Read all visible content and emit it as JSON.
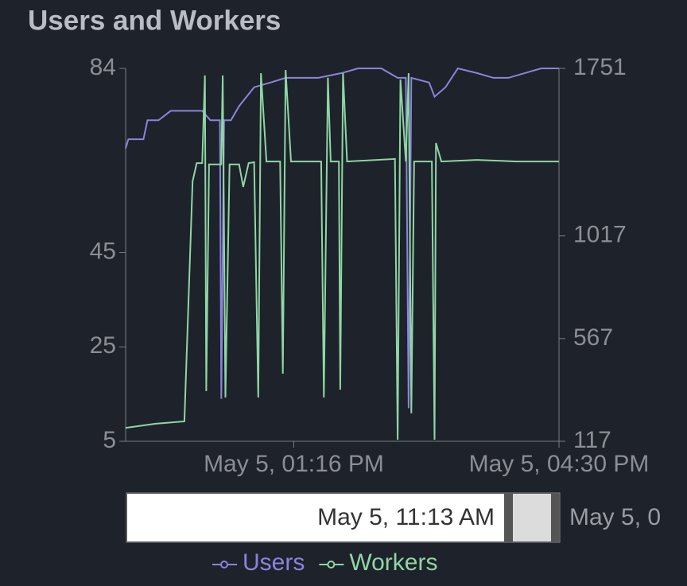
{
  "chart_data": {
    "type": "line",
    "title": "Users and Workers",
    "xlim": [
      "May 5, 11:13 AM",
      "May 5, 04:30 PM"
    ],
    "xticks": [
      "May 5, 01:16 PM",
      "May 5, 04:30 PM"
    ],
    "ylim": [
      5,
      84
    ],
    "yticks": [
      5,
      25,
      45,
      84
    ],
    "y2lim": [
      117,
      1751
    ],
    "y2ticks": [
      117,
      567,
      1017,
      1751
    ],
    "series": [
      {
        "name": "Users",
        "color": "#8b84dc",
        "axis": "y",
        "x": [
          "May 5, 11:13 AM",
          "May 5, 11:15 AM",
          "May 5, 11:26 AM",
          "May 5, 11:29 AM",
          "May 5, 11:37 AM",
          "May 5, 11:46 AM",
          "May 5, 11:55 AM",
          "May 5, 12:04 PM",
          "May 5, 12:09 PM",
          "May 5, 12:15 PM",
          "May 5, 12:22 PM",
          "May 5, 12:23 PM",
          "May 5, 12:25 PM",
          "May 5, 12:30 PM",
          "May 5, 12:36 PM",
          "May 5, 12:47 PM",
          "May 5, 12:59 PM",
          "May 5, 01:10 PM",
          "May 5, 01:22 PM",
          "May 5, 01:34 PM",
          "May 5, 01:51 PM",
          "May 5, 02:03 PM",
          "May 5, 02:20 PM",
          "May 5, 02:32 PM",
          "May 5, 02:38 PM",
          "May 5, 02:40 PM",
          "May 5, 02:42 PM",
          "May 5, 02:55 PM",
          "May 5, 02:59 PM",
          "May 5, 03:07 PM",
          "May 5, 03:16 PM",
          "May 5, 03:30 PM",
          "May 5, 03:42 PM",
          "May 5, 03:53 PM",
          "May 5, 04:05 PM",
          "May 5, 04:17 PM",
          "May 5, 04:30 PM"
        ],
        "values": [
          67,
          69,
          69,
          73,
          73,
          75,
          75,
          75,
          75,
          73,
          73,
          14,
          73,
          73,
          76,
          80,
          81,
          82,
          82,
          82,
          83,
          84,
          84,
          82,
          82,
          12,
          82,
          81,
          78,
          80,
          84,
          83,
          82,
          82,
          83,
          84,
          84
        ]
      },
      {
        "name": "Workers",
        "color": "#8fd6a5",
        "axis": "y2",
        "x": [
          "May 5, 11:13 AM",
          "May 5, 11:35 AM",
          "May 5, 11:56 AM",
          "May 5, 12:02 PM",
          "May 5, 12:05 PM",
          "May 5, 12:09 PM",
          "May 5, 12:11 PM",
          "May 5, 12:12 PM",
          "May 5, 12:14 PM",
          "May 5, 12:23 PM",
          "May 5, 12:24 PM",
          "May 5, 12:26 PM",
          "May 5, 12:29 PM",
          "May 5, 12:36 PM",
          "May 5, 12:39 PM",
          "May 5, 12:43 PM",
          "May 5, 12:47 PM",
          "May 5, 12:50 PM",
          "May 5, 12:52 PM",
          "May 5, 12:56 PM",
          "May 5, 01:06 PM",
          "May 5, 01:08 PM",
          "May 5, 01:10 PM",
          "May 5, 01:14 PM",
          "May 5, 01:36 PM",
          "May 5, 01:38 PM",
          "May 5, 01:41 PM",
          "May 5, 01:43 PM",
          "May 5, 01:49 PM",
          "May 5, 01:50 PM",
          "May 5, 01:52 PM",
          "May 5, 01:55 PM",
          "May 5, 02:30 PM",
          "May 5, 02:32 PM",
          "May 5, 02:34 PM",
          "May 5, 02:38 PM",
          "May 5, 02:40 PM",
          "May 5, 02:42 PM",
          "May 5, 02:44 PM",
          "May 5, 02:57 PM",
          "May 5, 02:59 PM",
          "May 5, 03:00 PM",
          "May 5, 03:04 PM",
          "May 5, 03:30 PM",
          "May 5, 03:59 PM",
          "May 5, 04:30 PM"
        ],
        "values": [
          176,
          194,
          204,
          1256,
          1336,
          1336,
          1720,
          337,
          1330,
          1330,
          1720,
          309,
          1330,
          1330,
          1232,
          1336,
          1340,
          309,
          1730,
          1343,
          1343,
          413,
          1744,
          1343,
          1343,
          309,
          1710,
          1343,
          1343,
          343,
          1730,
          1343,
          1354,
          124,
          1702,
          1343,
          1730,
          240,
          1343,
          1343,
          124,
          1424,
          1343,
          1350,
          1343,
          1343
        ]
      }
    ]
  }
}
